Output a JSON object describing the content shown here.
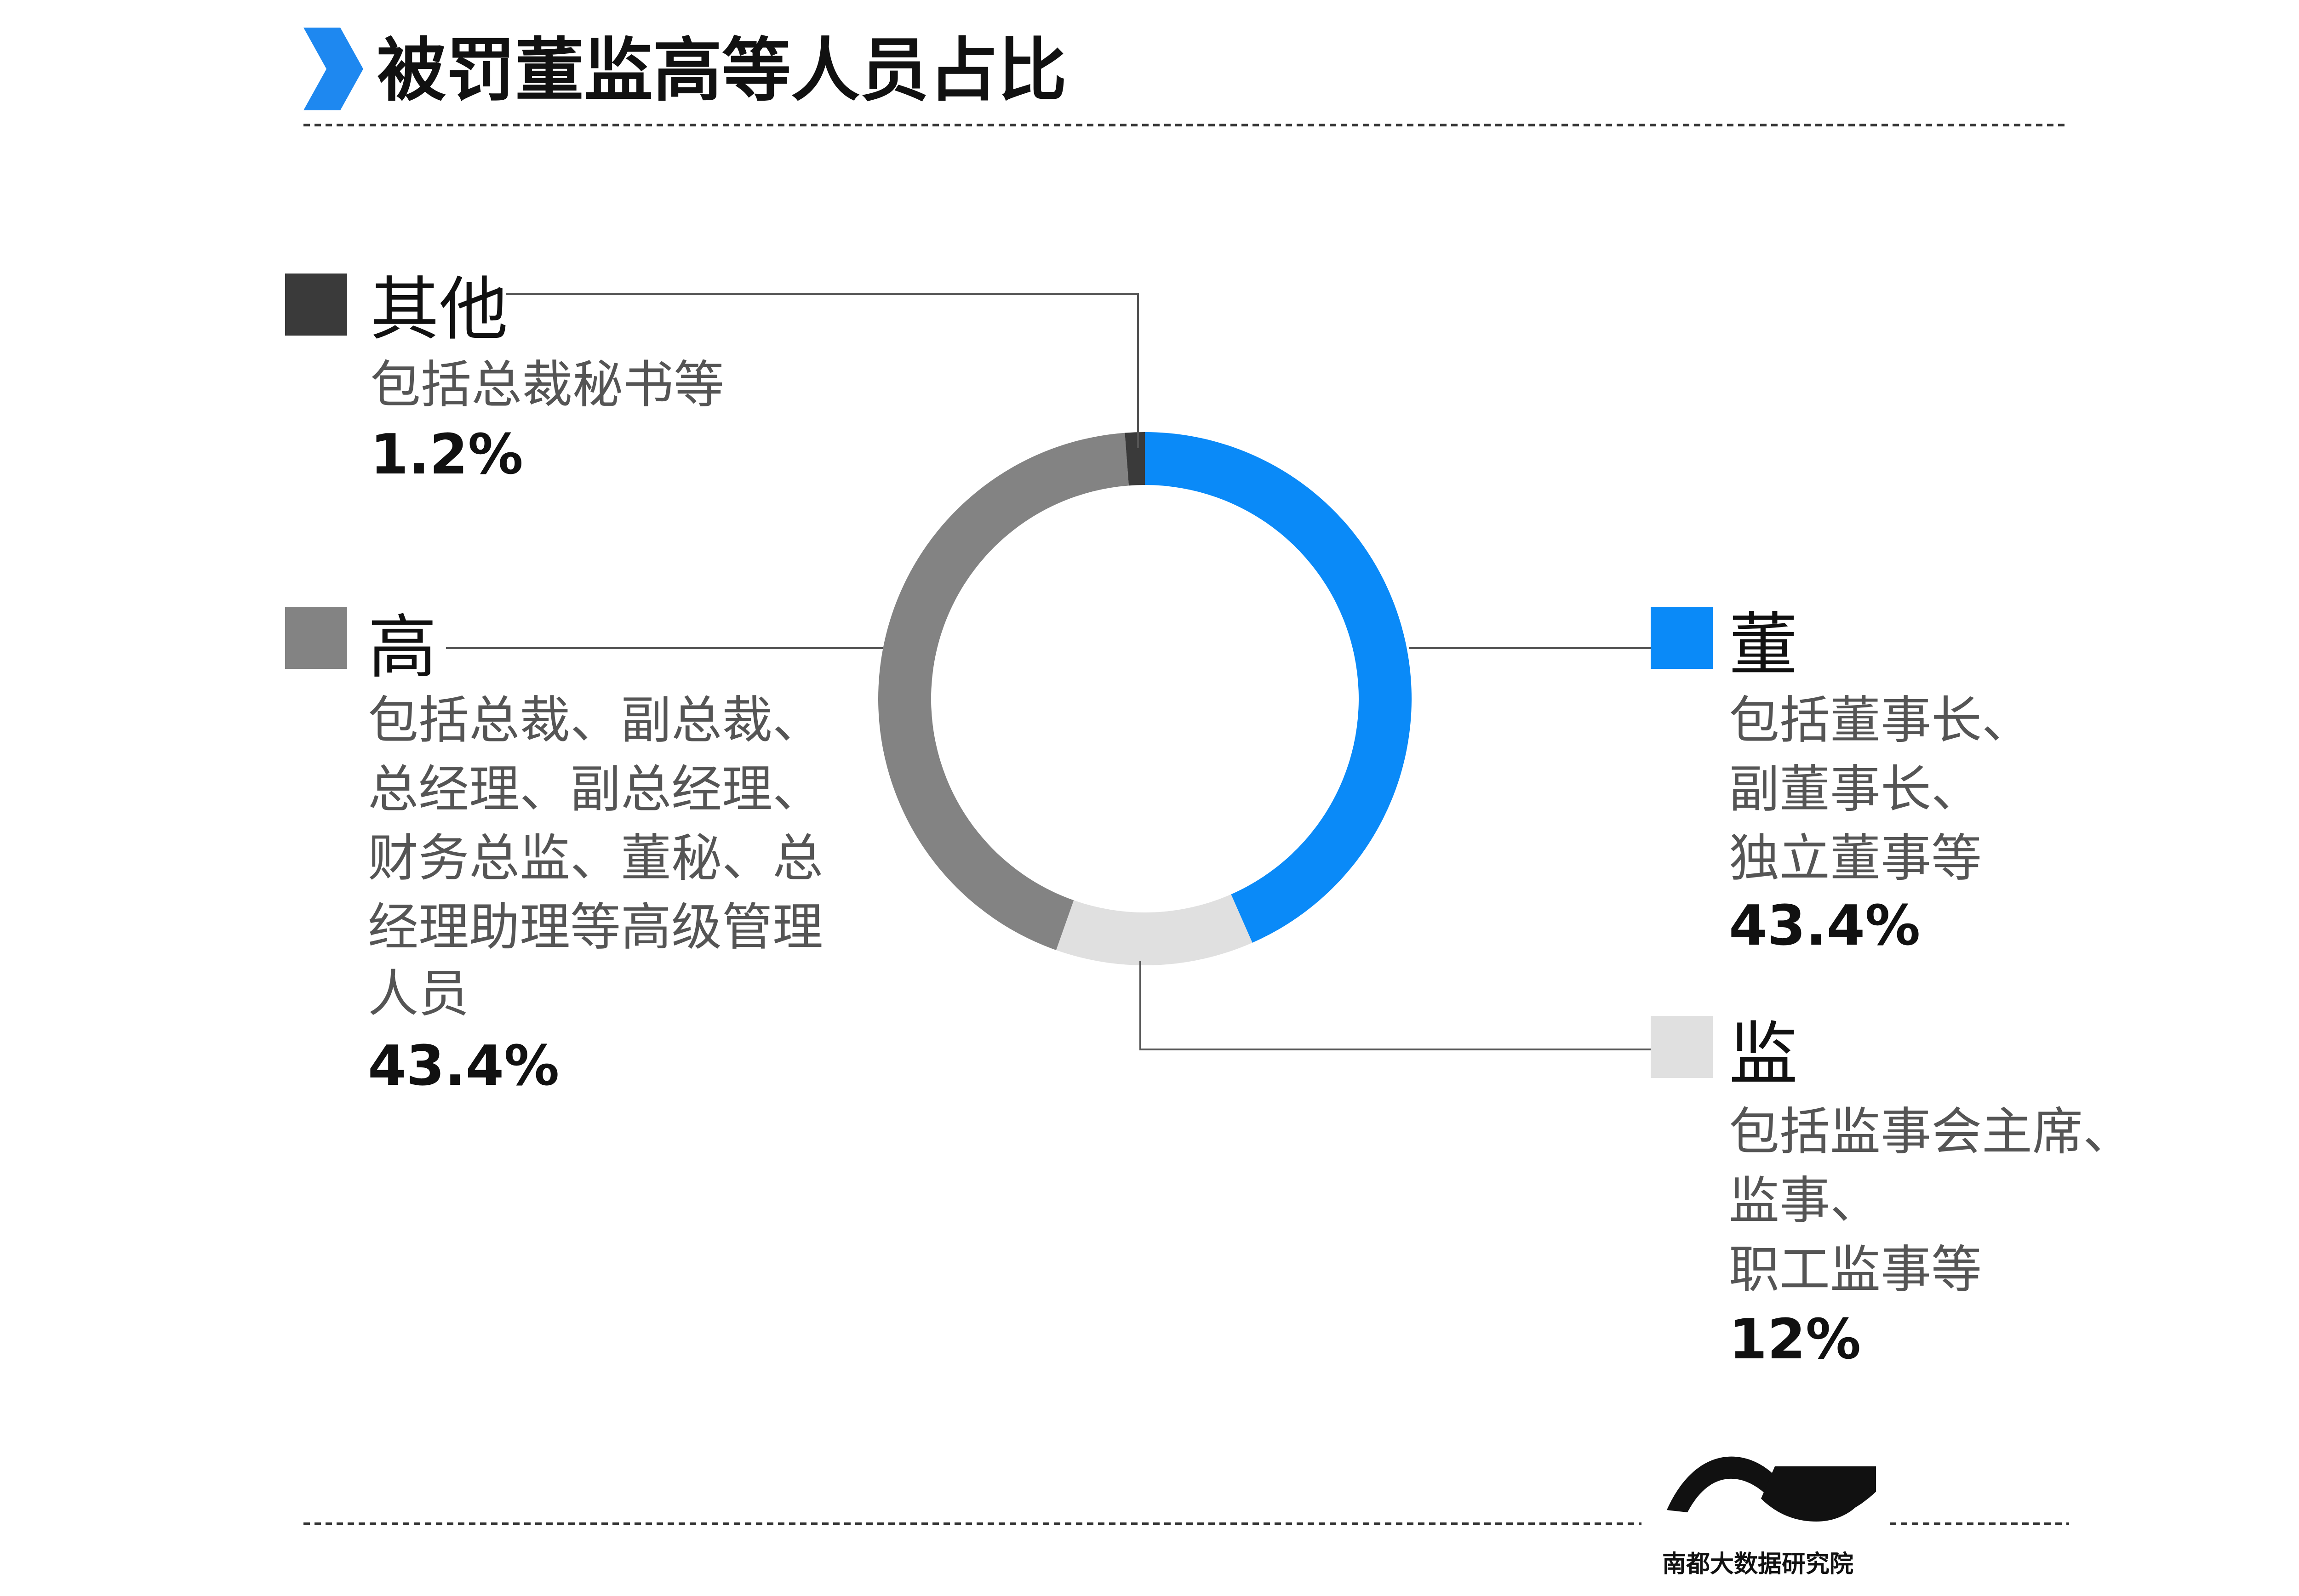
{
  "header": {
    "title": "被罚董监高等人员占比",
    "accent_color": "#1E88F0"
  },
  "chart_data": {
    "type": "pie",
    "title": "被罚董监高等人员占比",
    "donut": true,
    "start_angle_deg": 0,
    "direction": "clockwise",
    "slices": [
      {
        "key": "dong",
        "label": "董",
        "description": [
          "包括董事长、",
          "副董事长、",
          "独立董事等"
        ],
        "value": 43.4,
        "value_label": "43.4%",
        "color": "#0A8AF8"
      },
      {
        "key": "jian",
        "label": "监",
        "description": [
          "包括监事会主席、",
          "监事、",
          "职工监事等"
        ],
        "value": 12,
        "value_label": "12%",
        "color": "#E0E0E0"
      },
      {
        "key": "gao",
        "label": "高",
        "description": [
          "包括总裁、副总裁、",
          "总经理、副总经理、",
          "财务总监、董秘、总",
          "经理助理等高级管理",
          "人员"
        ],
        "value": 43.4,
        "value_label": "43.4%",
        "color": "#838383"
      },
      {
        "key": "other",
        "label": "其他",
        "description": [
          "包括总裁秘书等"
        ],
        "value": 1.2,
        "value_label": "1.2%",
        "color": "#3A3A3A"
      }
    ]
  },
  "footer": {
    "brand_name": "南都大数据研究院",
    "logo_icon": "nandu-logo-icon"
  }
}
